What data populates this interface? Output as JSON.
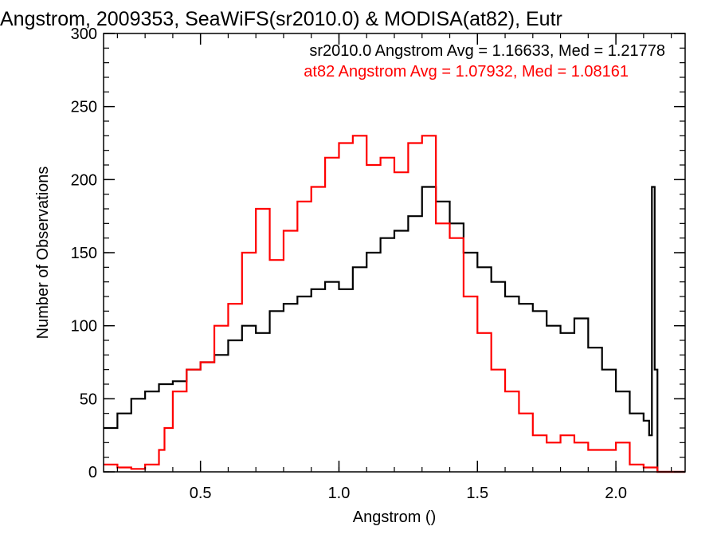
{
  "chart_data": {
    "type": "line",
    "step": true,
    "title": "Angstrom, 2009353, SeaWiFS(sr2010.0) & MODISA(at82), Eutr",
    "xlabel": "Angstrom ()",
    "ylabel": "Number of Observations",
    "xlim": [
      0.15,
      2.25
    ],
    "ylim": [
      0,
      300
    ],
    "x_ticks": [
      0.5,
      1.0,
      1.5,
      2.0
    ],
    "x_tick_labels": [
      "0.5",
      "1.0",
      "1.5",
      "2.0"
    ],
    "y_ticks": [
      0,
      50,
      100,
      150,
      200,
      250,
      300
    ],
    "y_tick_labels": [
      "0",
      "50",
      "100",
      "150",
      "200",
      "250",
      "300"
    ],
    "grid": false,
    "legend_position": "top-right",
    "annotations": [
      {
        "text": "sr2010.0 Angstrom Avg = 1.16633, Med = 1.21778",
        "color": "#000000"
      },
      {
        "text": "at82 Angstrom Avg = 1.07932, Med = 1.08161",
        "color": "#ff0000"
      }
    ],
    "series": [
      {
        "name": "sr2010.0",
        "color": "#000000",
        "x": [
          0.15,
          0.2,
          0.25,
          0.3,
          0.35,
          0.4,
          0.45,
          0.5,
          0.55,
          0.6,
          0.65,
          0.7,
          0.75,
          0.8,
          0.85,
          0.9,
          0.95,
          1.0,
          1.05,
          1.1,
          1.15,
          1.2,
          1.25,
          1.3,
          1.35,
          1.4,
          1.45,
          1.5,
          1.55,
          1.6,
          1.65,
          1.7,
          1.75,
          1.8,
          1.85,
          1.9,
          1.95,
          2.0,
          2.05,
          2.1,
          2.12,
          2.13,
          2.14,
          2.15,
          2.2,
          2.25
        ],
        "y": [
          30,
          40,
          50,
          55,
          60,
          62,
          70,
          75,
          80,
          90,
          100,
          95,
          110,
          115,
          120,
          125,
          130,
          125,
          140,
          150,
          160,
          165,
          175,
          195,
          185,
          170,
          150,
          140,
          130,
          120,
          115,
          110,
          100,
          95,
          105,
          85,
          70,
          55,
          40,
          35,
          25,
          195,
          70,
          0,
          0,
          0
        ]
      },
      {
        "name": "at82",
        "color": "#ff0000",
        "x": [
          0.15,
          0.2,
          0.25,
          0.3,
          0.35,
          0.37,
          0.4,
          0.45,
          0.5,
          0.55,
          0.6,
          0.65,
          0.7,
          0.75,
          0.8,
          0.85,
          0.9,
          0.95,
          1.0,
          1.05,
          1.1,
          1.15,
          1.2,
          1.25,
          1.3,
          1.35,
          1.4,
          1.45,
          1.5,
          1.55,
          1.6,
          1.65,
          1.7,
          1.75,
          1.8,
          1.85,
          1.9,
          1.95,
          2.0,
          2.05,
          2.1,
          2.15,
          2.2,
          2.25
        ],
        "y": [
          5,
          3,
          2,
          5,
          15,
          30,
          55,
          70,
          75,
          100,
          115,
          150,
          180,
          145,
          165,
          185,
          195,
          215,
          225,
          230,
          210,
          215,
          205,
          225,
          230,
          170,
          160,
          120,
          95,
          70,
          55,
          40,
          25,
          20,
          25,
          20,
          15,
          15,
          20,
          5,
          3,
          0,
          0,
          0
        ]
      }
    ]
  }
}
